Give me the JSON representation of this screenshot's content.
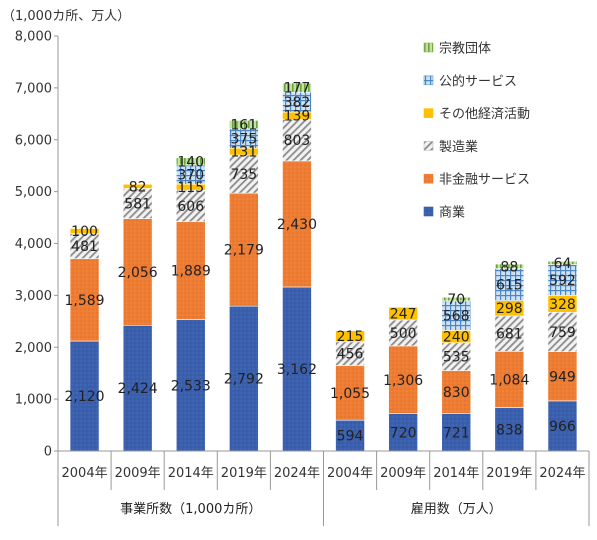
{
  "chart_data": {
    "type": "bar",
    "stacked": true,
    "unit_label": "（1,000カ所、万人）",
    "ylim": [
      0,
      8000
    ],
    "yticks": [
      "0",
      "1,000",
      "2,000",
      "3,000",
      "4,000",
      "5,000",
      "6,000",
      "7,000",
      "8,000"
    ],
    "yticks_values": [
      0,
      1000,
      2000,
      3000,
      4000,
      5000,
      6000,
      7000,
      8000
    ],
    "categories": [
      "2004年",
      "2009年",
      "2014年",
      "2019年",
      "2024年",
      "2004年",
      "2009年",
      "2014年",
      "2019年",
      "2024年"
    ],
    "groups": [
      {
        "label": "事業所数（1,000カ所）",
        "count": 5
      },
      {
        "label": "雇用数（万人）",
        "count": 5
      }
    ],
    "series": [
      {
        "name": "商業",
        "color": "#3a5fad",
        "pattern": "dots-dark",
        "values": [
          2120,
          2424,
          2533,
          2792,
          3162,
          594,
          720,
          721,
          838,
          966
        ],
        "labels": [
          "2,120",
          "2,424",
          "2,533",
          "2,792",
          "3,162",
          "594",
          "720",
          "721",
          "838",
          "966"
        ]
      },
      {
        "name": "非金融サービス",
        "color": "#ee7c33",
        "pattern": "dots-orange",
        "values": [
          1589,
          2056,
          1889,
          2179,
          2430,
          1055,
          1306,
          830,
          1084,
          949
        ],
        "labels": [
          "1,589",
          "2,056",
          "1,889",
          "2,179",
          "2,430",
          "1,055",
          "1,306",
          "830",
          "1,084",
          "949"
        ]
      },
      {
        "name": "製造業",
        "color": "#bdbdbd",
        "pattern": "diag",
        "values": [
          481,
          581,
          606,
          735,
          803,
          456,
          500,
          535,
          681,
          759
        ],
        "labels": [
          "481",
          "581",
          "606",
          "735",
          "803",
          "456",
          "500",
          "535",
          "681",
          "759"
        ]
      },
      {
        "name": "その他経済活動",
        "color": "#ffc000",
        "pattern": "solid",
        "values": [
          100,
          82,
          115,
          131,
          139,
          215,
          247,
          240,
          298,
          328
        ],
        "labels": [
          "100",
          "82",
          "115",
          "131",
          "139",
          "215",
          "247",
          "240",
          "298",
          "328"
        ]
      },
      {
        "name": "公的サービス",
        "color": "#5b9bd5",
        "pattern": "grid",
        "values": [
          0,
          0,
          370,
          375,
          382,
          0,
          0,
          568,
          615,
          592
        ],
        "labels": [
          "",
          "",
          "370",
          "375",
          "382",
          "",
          "",
          "568",
          "615",
          "592"
        ]
      },
      {
        "name": "宗教団体",
        "color": "#8cc152",
        "pattern": "vlines",
        "values": [
          0,
          0,
          140,
          161,
          177,
          0,
          0,
          70,
          88,
          64
        ],
        "labels": [
          "",
          "",
          "140",
          "161",
          "177",
          "",
          "",
          "70",
          "88",
          "64"
        ]
      }
    ],
    "legend": {
      "position": "top-right",
      "order": [
        "宗教団体",
        "公的サービス",
        "その他経済活動",
        "製造業",
        "非金融サービス",
        "商業"
      ]
    },
    "grid": false
  }
}
